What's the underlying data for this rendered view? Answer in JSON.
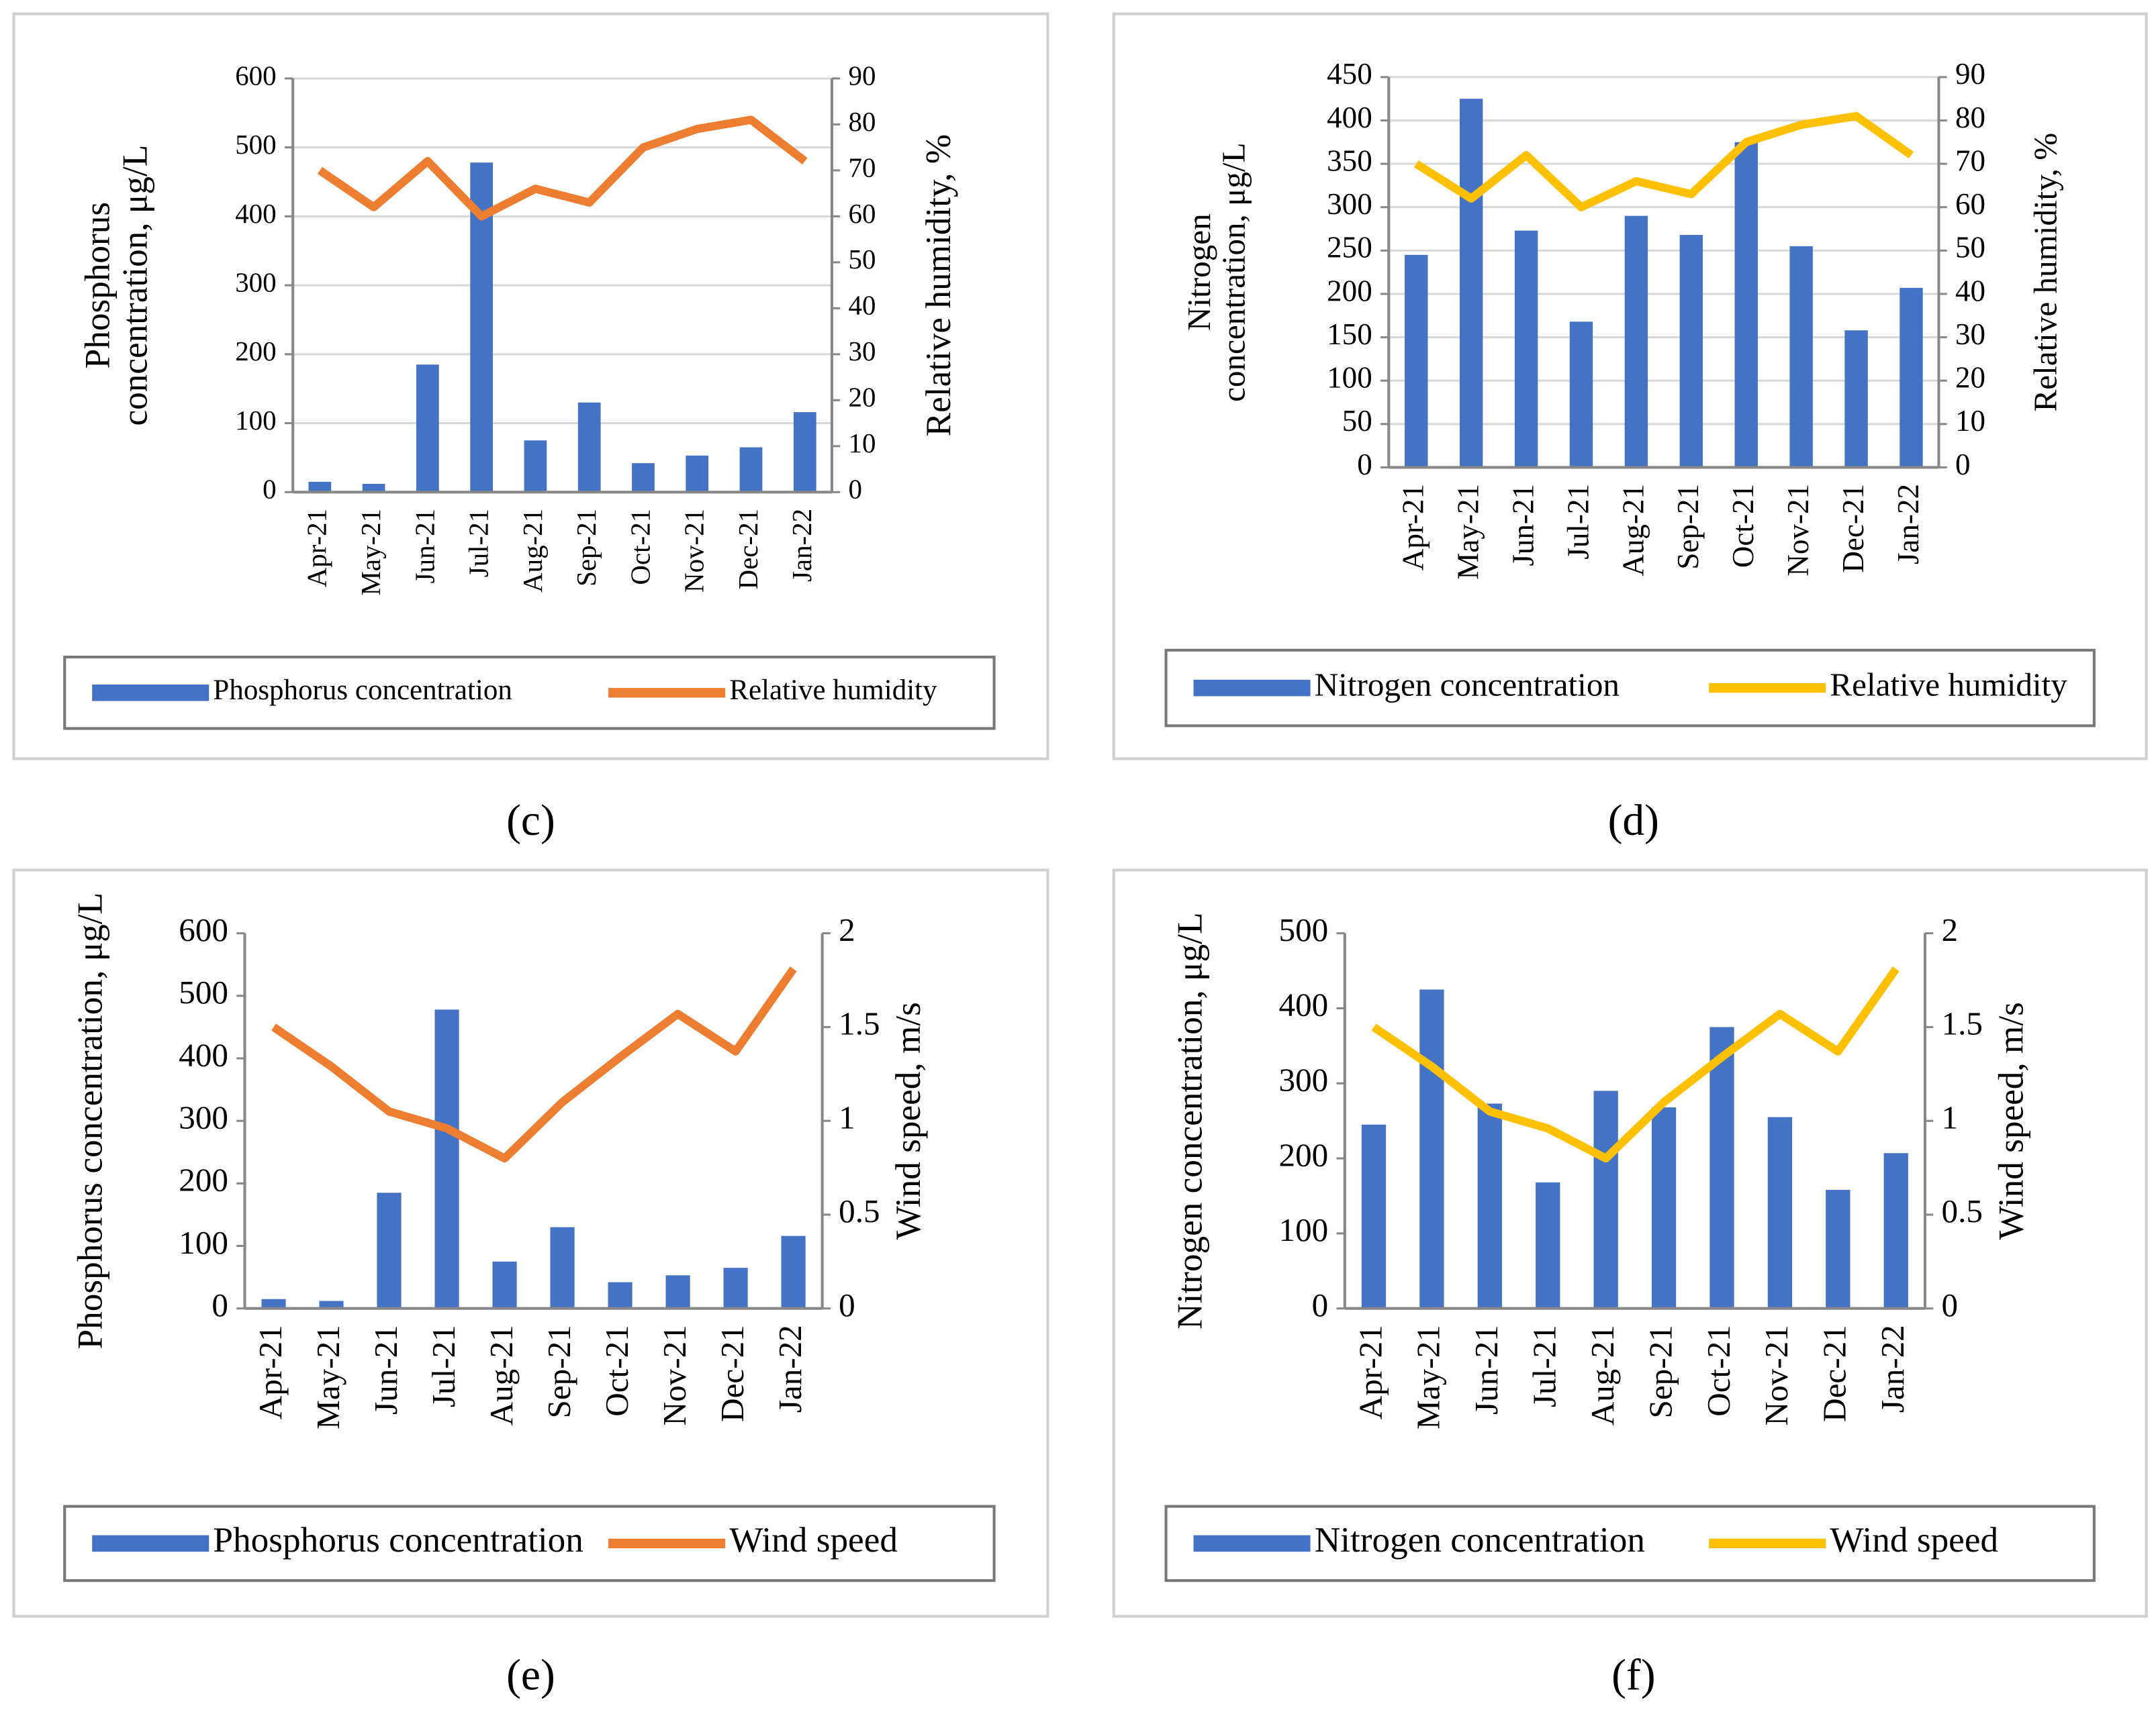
{
  "chart_data": [
    {
      "type": "bar",
      "label": "(c)",
      "y_label": [
        "Phosphorus",
        "concentration, μg/L"
      ],
      "y2_label": "Relative humidity, %",
      "categories": [
        "Apr-21",
        "May-21",
        "Jun-21",
        "Jul-21",
        "Aug-21",
        "Sep-21",
        "Oct-21",
        "Nov-21",
        "Dec-21",
        "Jan-22"
      ],
      "series": [
        {
          "name": "Phosphorus concentration",
          "color": "#4472c4",
          "values": [
            15,
            12,
            185,
            478,
            75,
            130,
            42,
            53,
            65,
            116
          ]
        },
        {
          "name": "Relative humidity",
          "color": "#ed7d31",
          "axis": "y2",
          "type": "line",
          "values": [
            70,
            62,
            72,
            60,
            66,
            63,
            75,
            79,
            81,
            72
          ]
        }
      ],
      "ylim": [
        0,
        600
      ],
      "yticks": [
        0,
        100,
        200,
        300,
        400,
        500,
        600
      ],
      "y2lim": [
        0,
        90
      ],
      "y2ticks": [
        0,
        10,
        20,
        30,
        40,
        50,
        60,
        70,
        80,
        90
      ],
      "grid": true
    },
    {
      "type": "bar",
      "label": "(d)",
      "y_label": [
        "Nitrogen",
        "concentration, μg/L"
      ],
      "y2_label": "Relative humidity, %",
      "categories": [
        "Apr-21",
        "May-21",
        "Jun-21",
        "Jul-21",
        "Aug-21",
        "Sep-21",
        "Oct-21",
        "Nov-21",
        "Dec-21",
        "Jan-22"
      ],
      "series": [
        {
          "name": "Nitrogen concentration",
          "color": "#4472c4",
          "values": [
            245,
            425,
            273,
            168,
            290,
            268,
            375,
            255,
            158,
            207
          ]
        },
        {
          "name": "Relative humidity",
          "color": "#ffc000",
          "axis": "y2",
          "type": "line",
          "values": [
            70,
            62,
            72,
            60,
            66,
            63,
            75,
            79,
            81,
            72
          ]
        }
      ],
      "ylim": [
        0,
        450
      ],
      "yticks": [
        0,
        50,
        100,
        150,
        200,
        250,
        300,
        350,
        400,
        450
      ],
      "y2lim": [
        0,
        90
      ],
      "y2ticks": [
        0,
        10,
        20,
        30,
        40,
        50,
        60,
        70,
        80,
        90
      ],
      "grid": true
    },
    {
      "type": "bar",
      "label": "(e)",
      "y_label": [
        "Phosphorus concentration, μg/L"
      ],
      "y2_label": "Wind speed, m/s",
      "categories": [
        "Apr-21",
        "May-21",
        "Jun-21",
        "Jul-21",
        "Aug-21",
        "Sep-21",
        "Oct-21",
        "Nov-21",
        "Dec-21",
        "Jan-22"
      ],
      "series": [
        {
          "name": "Phosphorus concentration",
          "color": "#4472c4",
          "values": [
            15,
            12,
            185,
            478,
            75,
            130,
            42,
            53,
            65,
            116
          ]
        },
        {
          "name": "Wind speed",
          "color": "#ed7d31",
          "axis": "y2",
          "type": "line",
          "values": [
            1.5,
            1.29,
            1.05,
            0.96,
            0.8,
            1.1,
            1.34,
            1.57,
            1.37,
            1.81
          ]
        }
      ],
      "ylim": [
        0,
        600
      ],
      "yticks": [
        0,
        100,
        200,
        300,
        400,
        500,
        600
      ],
      "y2lim": [
        0,
        2
      ],
      "y2ticks": [
        0,
        0.5,
        1,
        1.5,
        2
      ],
      "grid": false
    },
    {
      "type": "bar",
      "label": "(f)",
      "y_label": [
        "Nitrogen concentration, μg/L"
      ],
      "y2_label": "Wind speed, m/s",
      "categories": [
        "Apr-21",
        "May-21",
        "Jun-21",
        "Jul-21",
        "Aug-21",
        "Sep-21",
        "Oct-21",
        "Nov-21",
        "Dec-21",
        "Jan-22"
      ],
      "series": [
        {
          "name": "Nitrogen concentration",
          "color": "#4472c4",
          "values": [
            245,
            425,
            273,
            168,
            290,
            268,
            375,
            255,
            158,
            207
          ]
        },
        {
          "name": "Wind speed",
          "color": "#ffc000",
          "axis": "y2",
          "type": "line",
          "values": [
            1.5,
            1.29,
            1.05,
            0.96,
            0.8,
            1.1,
            1.34,
            1.57,
            1.37,
            1.81
          ]
        }
      ],
      "ylim": [
        0,
        500
      ],
      "yticks": [
        0,
        100,
        200,
        300,
        400,
        500
      ],
      "y2lim": [
        0,
        2
      ],
      "y2ticks": [
        0,
        0.5,
        1,
        1.5,
        2
      ],
      "grid": false
    }
  ]
}
